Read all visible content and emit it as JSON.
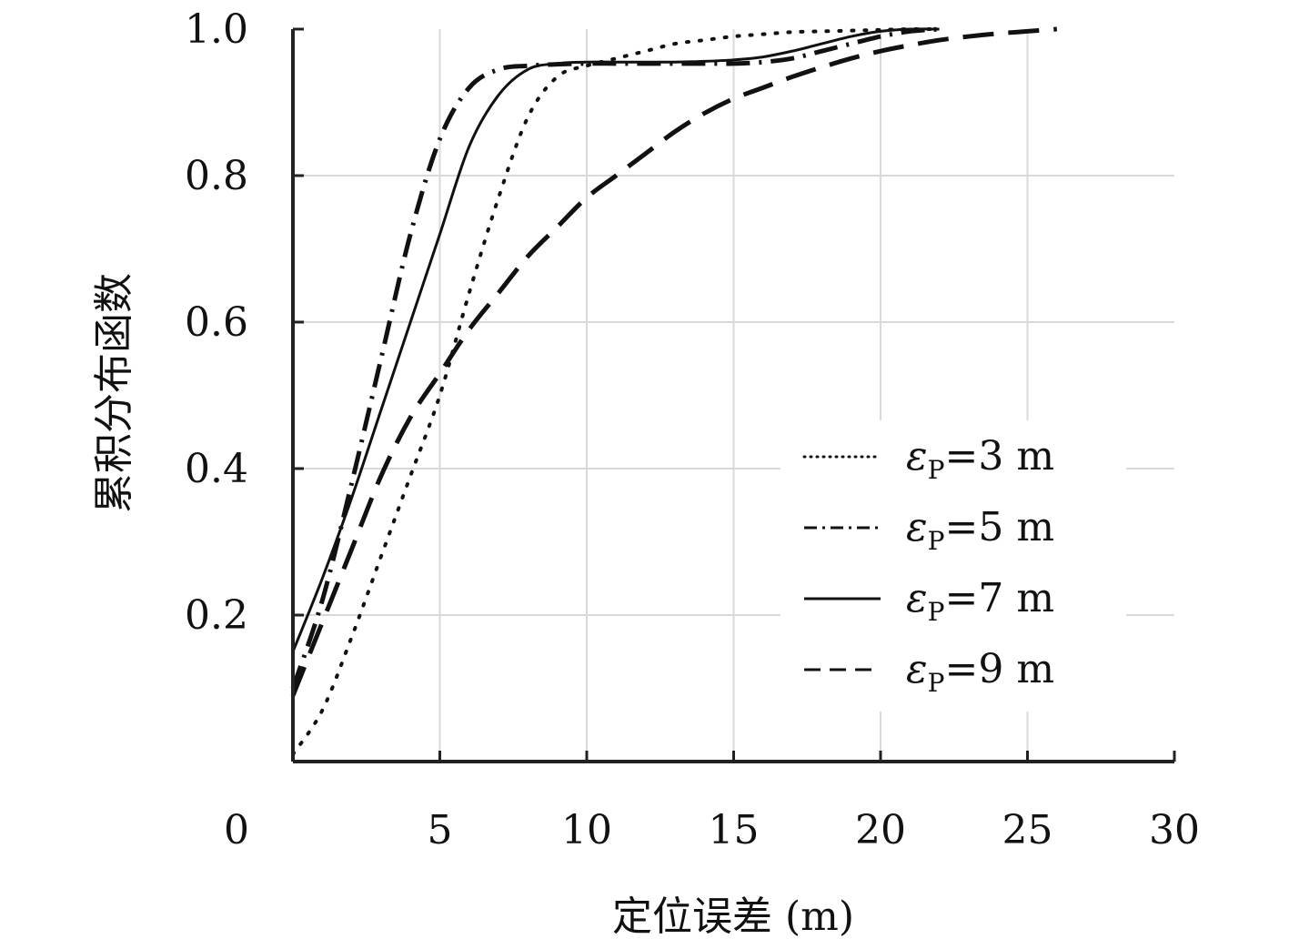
{
  "chart_data": {
    "type": "line",
    "title": "",
    "xlabel": "定位误差 (m)",
    "ylabel": "累积分布函数",
    "xlim": [
      0,
      30
    ],
    "ylim": [
      0,
      1.0
    ],
    "x_ticks": [
      "0",
      "5",
      "10",
      "15",
      "20",
      "25",
      "30"
    ],
    "y_ticks": [
      "0.2",
      "0.4",
      "0.6",
      "0.8",
      "1.0"
    ],
    "grid": true,
    "legend_position": "lower-right",
    "series": [
      {
        "name": "εP=3 m",
        "sym": "ε",
        "sub": "P",
        "rest": "=3 m",
        "dash": "dotted",
        "width": 4,
        "x": [
          0,
          1,
          2,
          3,
          4,
          5,
          6,
          7,
          8,
          9,
          10,
          11,
          12,
          13,
          14,
          15,
          16,
          17,
          18,
          19,
          20,
          21,
          22
        ],
        "y": [
          0.01,
          0.07,
          0.17,
          0.28,
          0.39,
          0.5,
          0.64,
          0.77,
          0.88,
          0.935,
          0.95,
          0.96,
          0.97,
          0.98,
          0.985,
          0.99,
          0.993,
          0.996,
          0.997,
          0.998,
          0.999,
          1.0,
          1.0
        ]
      },
      {
        "name": "εP=5 m",
        "sym": "ε",
        "sub": "P",
        "rest": "=5 m",
        "dash": "dashdot",
        "width": 5,
        "x": [
          0,
          1,
          2,
          3,
          4,
          5,
          6,
          7,
          8,
          9,
          10,
          11,
          12,
          13,
          14,
          15,
          16,
          17,
          18,
          19,
          20,
          21,
          22
        ],
        "y": [
          0.1,
          0.22,
          0.38,
          0.55,
          0.72,
          0.85,
          0.92,
          0.945,
          0.95,
          0.952,
          0.953,
          0.953,
          0.953,
          0.953,
          0.953,
          0.953,
          0.955,
          0.96,
          0.97,
          0.98,
          0.99,
          0.997,
          1.0
        ]
      },
      {
        "name": "εP=7 m",
        "sym": "ε",
        "sub": "P",
        "rest": "=7 m",
        "dash": "solid",
        "width": 3,
        "x": [
          0,
          1,
          2,
          3,
          4,
          5,
          6,
          7,
          8,
          9,
          10,
          11,
          12,
          13,
          14,
          15,
          16,
          17,
          18,
          19,
          20,
          21,
          22
        ],
        "y": [
          0.15,
          0.25,
          0.36,
          0.48,
          0.6,
          0.72,
          0.84,
          0.91,
          0.945,
          0.953,
          0.955,
          0.955,
          0.955,
          0.955,
          0.956,
          0.958,
          0.962,
          0.97,
          0.98,
          0.99,
          0.997,
          1.0,
          1.0
        ]
      },
      {
        "name": "εP=9 m",
        "sym": "ε",
        "sub": "P",
        "rest": "=9 m",
        "dash": "dashed",
        "width": 5,
        "x": [
          0,
          1,
          2,
          3,
          4,
          5,
          6,
          7,
          8,
          9,
          10,
          11,
          12,
          13,
          14,
          15,
          16,
          17,
          18,
          19,
          20,
          21,
          22,
          23,
          24,
          25,
          26
        ],
        "y": [
          0.09,
          0.19,
          0.29,
          0.39,
          0.47,
          0.53,
          0.59,
          0.64,
          0.69,
          0.73,
          0.77,
          0.8,
          0.83,
          0.86,
          0.885,
          0.905,
          0.92,
          0.935,
          0.948,
          0.96,
          0.97,
          0.978,
          0.985,
          0.99,
          0.994,
          0.997,
          1.0
        ]
      }
    ]
  }
}
